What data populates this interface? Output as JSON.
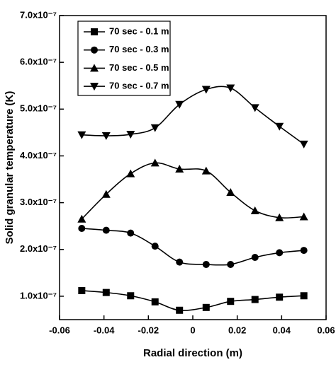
{
  "chart_data": {
    "type": "line",
    "x_label": "Radial direction (m)",
    "y_label": "Solid granular temperature (K)",
    "x": [
      -0.05,
      -0.039,
      -0.028,
      -0.017,
      -0.006,
      0.006,
      0.017,
      0.028,
      0.039,
      0.05
    ],
    "series": [
      {
        "name": "70 sec - 0.1 m",
        "color": "#000000",
        "marker": "square",
        "values": [
          1.12e-07,
          1.08e-07,
          1.01e-07,
          8.8e-08,
          7e-08,
          7.6e-08,
          8.9e-08,
          9.3e-08,
          9.8e-08,
          1.01e-07
        ]
      },
      {
        "name": "70 sec - 0.3 m",
        "color": "#000000",
        "marker": "circle",
        "values": [
          2.45e-07,
          2.41e-07,
          2.35e-07,
          2.07e-07,
          1.73e-07,
          1.68e-07,
          1.68e-07,
          1.83e-07,
          1.93e-07,
          1.98e-07
        ]
      },
      {
        "name": "70 sec - 0.5 m",
        "color": "#000000",
        "marker": "triangle-up",
        "values": [
          2.65e-07,
          3.18e-07,
          3.62e-07,
          3.85e-07,
          3.72e-07,
          3.68e-07,
          3.22e-07,
          2.83e-07,
          2.68e-07,
          2.7e-07
        ]
      },
      {
        "name": "70 sec - 0.7 m",
        "color": "#000000",
        "marker": "triangle-down",
        "values": [
          4.45e-07,
          4.43e-07,
          4.46e-07,
          4.6e-07,
          5.1e-07,
          5.42e-07,
          5.45e-07,
          5.03e-07,
          4.63e-07,
          4.25e-07
        ]
      }
    ],
    "xlim": [
      -0.06,
      0.06
    ],
    "xticks": [
      -0.06,
      -0.04,
      -0.02,
      0,
      0.02,
      0.04,
      0.06
    ],
    "ylim": [
      5e-08,
      7e-07
    ],
    "yticks": [
      {
        "value": 1e-07,
        "label": "1.0x10⁻⁷"
      },
      {
        "value": 2e-07,
        "label": "2.0x10⁻⁷"
      },
      {
        "value": 3e-07,
        "label": "3.0x10⁻⁷"
      },
      {
        "value": 4e-07,
        "label": "4.0x10⁻⁷"
      },
      {
        "value": 5e-07,
        "label": "5.0x10⁻⁷"
      },
      {
        "value": 6e-07,
        "label": "6.0x10⁻⁷"
      },
      {
        "value": 7e-07,
        "label": "7.0x10⁻⁷"
      }
    ],
    "legend": "upper-left"
  }
}
